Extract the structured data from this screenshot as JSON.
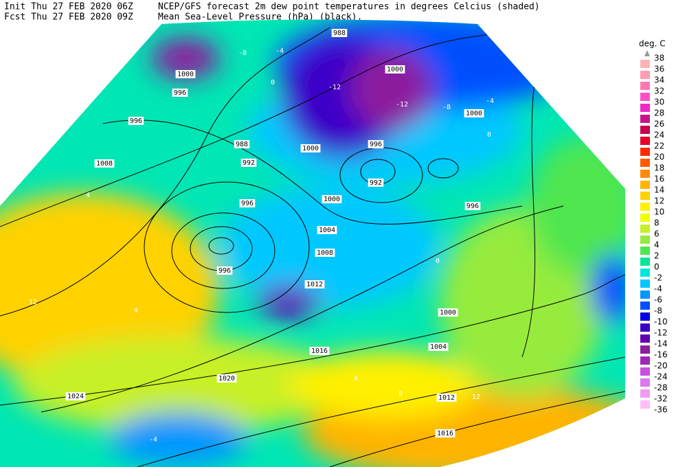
{
  "header": {
    "init": "Init  Thu 27 FEB 2020 06Z",
    "fcst": "Fcst Thu 27 FEB 2020 09Z",
    "title": "NCEP/GFS forecast 2m dew point temperatures in degrees Celcius (shaded)",
    "subtitle": "Mean Sea-Level Pressure (hPa) (black)."
  },
  "legend": {
    "unit": "deg. C",
    "levels": [
      38,
      36,
      34,
      32,
      30,
      28,
      26,
      24,
      22,
      20,
      18,
      16,
      14,
      12,
      10,
      8,
      6,
      4,
      2,
      0,
      -2,
      -4,
      -6,
      -8,
      -10,
      -12,
      -14,
      -16,
      -20,
      -24,
      -28,
      -32,
      -36
    ],
    "colors": [
      "#ffb4b4",
      "#ff9cb4",
      "#ff78b4",
      "#ff50c8",
      "#f028c8",
      "#c8148c",
      "#c80050",
      "#e60028",
      "#ff2800",
      "#ff5a00",
      "#ff8c00",
      "#ffb400",
      "#ffd200",
      "#fff000",
      "#f0ff00",
      "#c8f028",
      "#96eb3c",
      "#50e650",
      "#00e696",
      "#00e6dc",
      "#00c8ff",
      "#0096ff",
      "#0050ff",
      "#0000e6",
      "#3c00c8",
      "#6400b4",
      "#8c1e9e",
      "#a028b4",
      "#c850dc",
      "#dc78f0",
      "#f09cf0",
      "#ffbef5"
    ]
  },
  "map": {
    "isobar_labels": [
      988,
      1000,
      996,
      996,
      988,
      992,
      1008,
      996,
      1000,
      1004,
      1008,
      996,
      1012,
      1000,
      1000,
      996,
      992,
      996,
      1000,
      1004,
      1016,
      1020,
      1024,
      1012,
      1016,
      1000
    ],
    "dewpoint_labels": [
      -4,
      -8,
      -12,
      -12,
      -8,
      -4,
      0,
      4,
      12,
      4,
      0,
      8,
      12,
      0,
      4,
      -4
    ]
  }
}
